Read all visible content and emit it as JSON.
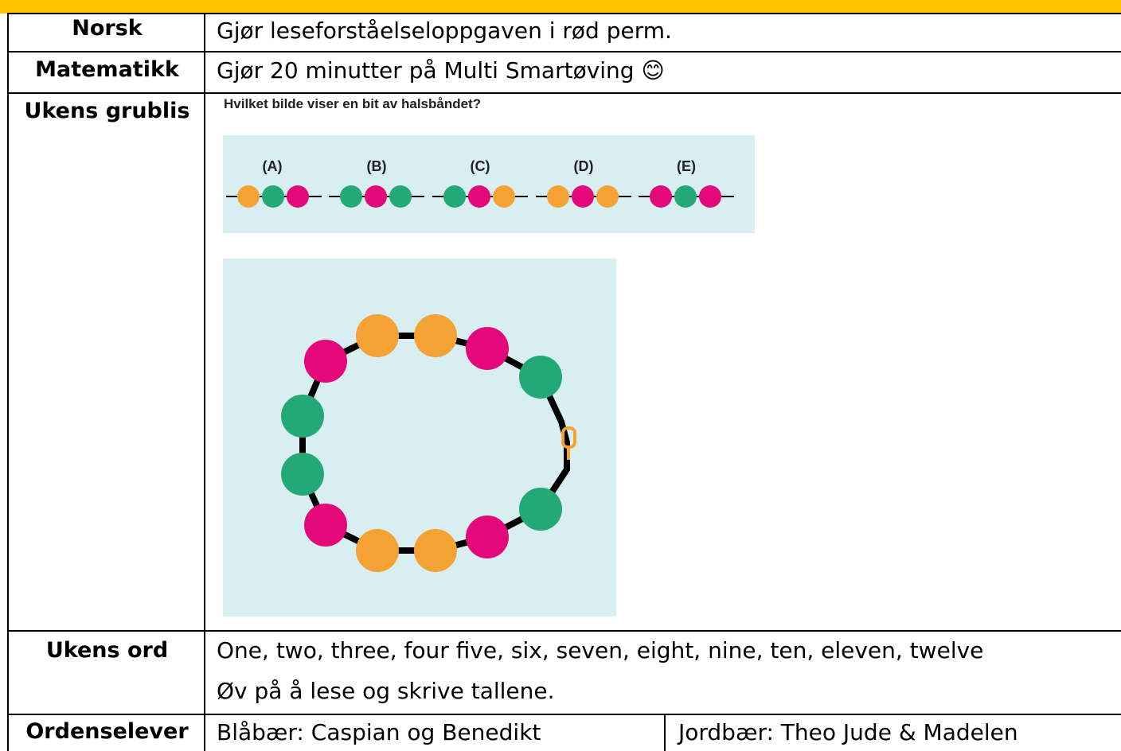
{
  "table": {
    "rows": [
      {
        "label": "Norsk",
        "text": "Gjør leseforståelseloppgaven i rød perm."
      },
      {
        "label": "Matematikk",
        "text": "Gjør 20 minutter på Multi Smartøving 😊"
      },
      {
        "label": "Ukens grublis",
        "question": "Hvilket bilde viser en bit av halsbåndet?",
        "options": [
          "(A)",
          "(B)",
          "(C)",
          "(D)",
          "(E)"
        ]
      },
      {
        "label": "Ukens ord",
        "lines": [
          "One, two, three, four five, six, seven, eight, nine, ten, eleven, twelve",
          "Øv på å lese og skrive tallene."
        ]
      },
      {
        "label": "Ordenselever",
        "cells": [
          "Blåbær: Caspian og Benedikt",
          "Jordbær: Theo Jude & Madelen"
        ]
      }
    ]
  }
}
